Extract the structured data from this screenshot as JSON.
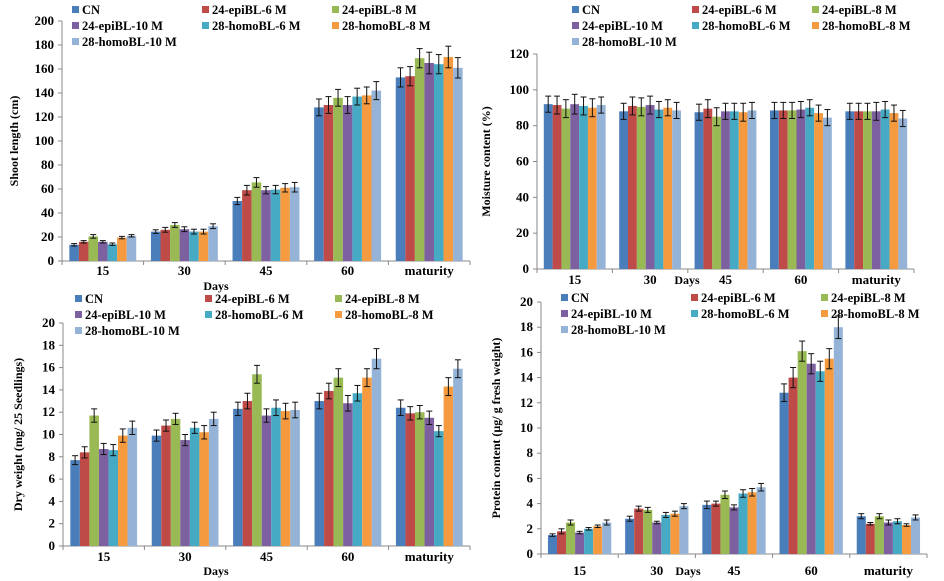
{
  "series_names": [
    "CN",
    "24-epiBL-6 M",
    "24-epiBL-8 M",
    "24-epiBL-10 M",
    "28-homoBL-6 M",
    "28-homoBL-8 M",
    "28-homoBL-10 M"
  ],
  "series_colors": [
    "#4a7ebb",
    "#be4b48",
    "#98b954",
    "#7d60a0",
    "#46aac5",
    "#f59a3e",
    "#95b3d7"
  ],
  "chart_data": [
    {
      "type": "bar",
      "title": "",
      "xlabel": "Days",
      "ylabel": "Shoot length (cm)",
      "ylim": [
        0,
        200
      ],
      "yticks": [
        0,
        20,
        40,
        60,
        80,
        100,
        120,
        140,
        160,
        180,
        200
      ],
      "categories": [
        "15",
        "30",
        "45",
        "60",
        "maturity"
      ],
      "legend": "top-left",
      "grid": false,
      "series": [
        {
          "name": "CN",
          "values": [
            13.5,
            24.5,
            50,
            128,
            153
          ],
          "errors": [
            1,
            1.5,
            3,
            7,
            8
          ]
        },
        {
          "name": "24-epiBL-6 M",
          "values": [
            16,
            26,
            59,
            130,
            154
          ],
          "errors": [
            1,
            2,
            4,
            7,
            8
          ]
        },
        {
          "name": "24-epiBL-8 M",
          "values": [
            20.5,
            30,
            65.5,
            136,
            169
          ],
          "errors": [
            1.5,
            2,
            4,
            7,
            8
          ]
        },
        {
          "name": "24-epiBL-10 M",
          "values": [
            16,
            26.5,
            59,
            130,
            165
          ],
          "errors": [
            1,
            2,
            3,
            7,
            9
          ]
        },
        {
          "name": "28-homoBL-6 M",
          "values": [
            14,
            24.5,
            59.5,
            137,
            164
          ],
          "errors": [
            1,
            2,
            3.5,
            7,
            8
          ]
        },
        {
          "name": "28-homoBL-8 M",
          "values": [
            19.5,
            24.5,
            61,
            138,
            170
          ],
          "errors": [
            1,
            2,
            3.5,
            7,
            9
          ]
        },
        {
          "name": "28-homoBL-10 M",
          "values": [
            21,
            29,
            61.5,
            142,
            161
          ],
          "errors": [
            1,
            2,
            4,
            7.5,
            8.5
          ]
        }
      ]
    },
    {
      "type": "bar",
      "title": "",
      "xlabel": "Days",
      "ylabel": "Moisture content (%)",
      "ylim": [
        0,
        120
      ],
      "yticks": [
        0,
        20,
        40,
        60,
        80,
        100,
        120
      ],
      "categories": [
        "15",
        "30",
        "45",
        "60",
        "maturity"
      ],
      "legend": "top",
      "grid": false,
      "series": [
        {
          "name": "CN",
          "values": [
            92,
            88,
            87.5,
            88.5,
            88
          ],
          "errors": [
            4.5,
            4.5,
            4.5,
            4.5,
            4.5
          ]
        },
        {
          "name": "24-epiBL-6 M",
          "values": [
            91.5,
            91,
            89.5,
            88.5,
            88
          ],
          "errors": [
            5,
            5,
            5,
            4.5,
            4.5
          ]
        },
        {
          "name": "24-epiBL-8 M",
          "values": [
            89.5,
            90.5,
            85,
            88.5,
            88
          ],
          "errors": [
            5,
            5,
            5,
            4.5,
            4.5
          ]
        },
        {
          "name": "24-epiBL-10 M",
          "values": [
            92,
            91.5,
            88,
            89,
            88
          ],
          "errors": [
            5.5,
            5,
            4.5,
            4.5,
            5
          ]
        },
        {
          "name": "28-homoBL-6 M",
          "values": [
            91,
            89,
            88,
            90,
            89
          ],
          "errors": [
            5,
            4.5,
            4.5,
            4.5,
            4.5
          ]
        },
        {
          "name": "28-homoBL-8 M",
          "values": [
            90,
            90,
            87.5,
            87,
            87
          ],
          "errors": [
            5,
            4.5,
            5,
            4.5,
            4.5
          ]
        },
        {
          "name": "28-homoBL-10 M",
          "values": [
            91.5,
            88.5,
            88.5,
            84.5,
            84
          ],
          "errors": [
            4.5,
            4.5,
            4.5,
            4.5,
            4.5
          ]
        }
      ]
    },
    {
      "type": "bar",
      "title": "",
      "xlabel": "Days",
      "ylabel": "Dry weight (mg/ 25 Seedlings)",
      "ylim": [
        0,
        20
      ],
      "yticks": [
        0,
        2,
        4,
        6,
        8,
        10,
        12,
        14,
        16,
        18,
        20
      ],
      "categories": [
        "15",
        "30",
        "45",
        "60",
        "maturity"
      ],
      "legend": "top-left",
      "grid": false,
      "series": [
        {
          "name": "CN",
          "values": [
            7.7,
            9.9,
            12.3,
            13,
            12.4
          ],
          "errors": [
            0.4,
            0.5,
            0.6,
            0.7,
            0.7
          ]
        },
        {
          "name": "24-epiBL-6 M",
          "values": [
            8.4,
            10.8,
            13,
            13.9,
            11.9
          ],
          "errors": [
            0.5,
            0.5,
            0.7,
            0.7,
            0.6
          ]
        },
        {
          "name": "24-epiBL-8 M",
          "values": [
            11.7,
            11.4,
            15.4,
            15.1,
            12
          ],
          "errors": [
            0.6,
            0.5,
            0.8,
            0.8,
            0.6
          ]
        },
        {
          "name": "24-epiBL-10 M",
          "values": [
            8.7,
            9.5,
            11.7,
            12.8,
            11.5
          ],
          "errors": [
            0.5,
            0.5,
            0.6,
            0.7,
            0.6
          ]
        },
        {
          "name": "28-homoBL-6 M",
          "values": [
            8.6,
            10.6,
            12.4,
            13.7,
            10.3
          ],
          "errors": [
            0.5,
            0.5,
            0.7,
            0.7,
            0.5
          ]
        },
        {
          "name": "28-homoBL-8 M",
          "values": [
            9.9,
            10.2,
            12.1,
            15.1,
            14.3
          ],
          "errors": [
            0.6,
            0.6,
            0.7,
            0.8,
            0.8
          ]
        },
        {
          "name": "28-homoBL-10 M",
          "values": [
            10.6,
            11.4,
            12.2,
            16.8,
            15.9
          ],
          "errors": [
            0.6,
            0.6,
            0.7,
            0.9,
            0.8
          ]
        }
      ]
    },
    {
      "type": "bar",
      "title": "",
      "xlabel": "Days",
      "ylabel": "Protein content (µg/ g fresh weight)",
      "ylim": [
        0,
        20
      ],
      "yticks": [
        0,
        2,
        4,
        6,
        8,
        10,
        12,
        14,
        16,
        18,
        20
      ],
      "categories": [
        "15",
        "30",
        "45",
        "60",
        "maturity"
      ],
      "legend": "top-left",
      "grid": false,
      "series": [
        {
          "name": "CN",
          "values": [
            1.5,
            2.8,
            3.9,
            12.8,
            3
          ],
          "errors": [
            0.1,
            0.2,
            0.3,
            0.7,
            0.2
          ]
        },
        {
          "name": "24-epiBL-6 M",
          "values": [
            1.8,
            3.6,
            4,
            14,
            2.4
          ],
          "errors": [
            0.2,
            0.2,
            0.2,
            0.8,
            0.1
          ]
        },
        {
          "name": "24-epiBL-8 M",
          "values": [
            2.5,
            3.5,
            4.7,
            16.1,
            3
          ],
          "errors": [
            0.2,
            0.2,
            0.3,
            0.8,
            0.2
          ]
        },
        {
          "name": "24-epiBL-10 M",
          "values": [
            1.7,
            2.5,
            3.7,
            15.1,
            2.5
          ],
          "errors": [
            0.1,
            0.1,
            0.2,
            0.8,
            0.2
          ]
        },
        {
          "name": "28-homoBL-6 M",
          "values": [
            2,
            3.1,
            4.8,
            14.5,
            2.6
          ],
          "errors": [
            0.1,
            0.2,
            0.3,
            0.8,
            0.2
          ]
        },
        {
          "name": "28-homoBL-8 M",
          "values": [
            2.2,
            3.2,
            4.9,
            15.5,
            2.3
          ],
          "errors": [
            0.1,
            0.2,
            0.3,
            0.8,
            0.1
          ]
        },
        {
          "name": "28-homoBL-10 M",
          "values": [
            2.5,
            3.8,
            5.3,
            18,
            2.9
          ],
          "errors": [
            0.2,
            0.2,
            0.3,
            0.9,
            0.2
          ]
        }
      ]
    }
  ]
}
